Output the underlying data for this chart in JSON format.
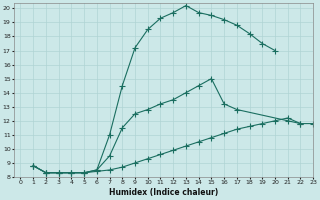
{
  "xlabel": "Humidex (Indice chaleur)",
  "bg_color": "#cce8e8",
  "grid_color": "#b0d4d4",
  "line_color": "#1a6e60",
  "xlim": [
    -0.5,
    23
  ],
  "ylim": [
    8,
    20.4
  ],
  "xticks": [
    0,
    1,
    2,
    3,
    4,
    5,
    6,
    7,
    8,
    9,
    10,
    11,
    12,
    13,
    14,
    15,
    16,
    17,
    18,
    19,
    20,
    21,
    22,
    23
  ],
  "yticks": [
    8,
    9,
    10,
    11,
    12,
    13,
    14,
    15,
    16,
    17,
    18,
    19,
    20
  ],
  "curve1_x": [
    1,
    2,
    3,
    4,
    5,
    6,
    7,
    8,
    9,
    10,
    11,
    12,
    13,
    14,
    15,
    16,
    17,
    18,
    19,
    20
  ],
  "curve1_y": [
    8.8,
    8.3,
    8.3,
    8.3,
    8.3,
    8.5,
    11.0,
    14.5,
    17.2,
    18.5,
    19.3,
    19.7,
    20.2,
    19.7,
    19.5,
    19.2,
    18.8,
    18.2,
    17.5,
    17.0
  ],
  "curve2_x": [
    1,
    2,
    3,
    4,
    5,
    6,
    7,
    8,
    9,
    10,
    11,
    12,
    13,
    14,
    15,
    16,
    17,
    21,
    22
  ],
  "curve2_y": [
    8.8,
    8.3,
    8.3,
    8.3,
    8.3,
    8.5,
    9.5,
    11.5,
    12.5,
    12.8,
    13.2,
    13.5,
    14.0,
    14.5,
    15.0,
    13.2,
    12.8,
    12.0,
    11.8
  ],
  "curve3_x": [
    1,
    2,
    3,
    4,
    5,
    6,
    7,
    8,
    9,
    10,
    11,
    12,
    13,
    14,
    15,
    16,
    17,
    18,
    19,
    20,
    21,
    22,
    23
  ],
  "curve3_y": [
    8.8,
    8.3,
    8.3,
    8.3,
    8.3,
    8.4,
    8.5,
    8.7,
    9.0,
    9.3,
    9.6,
    9.9,
    10.2,
    10.5,
    10.8,
    11.1,
    11.4,
    11.6,
    11.8,
    12.0,
    12.2,
    11.8,
    11.8
  ]
}
